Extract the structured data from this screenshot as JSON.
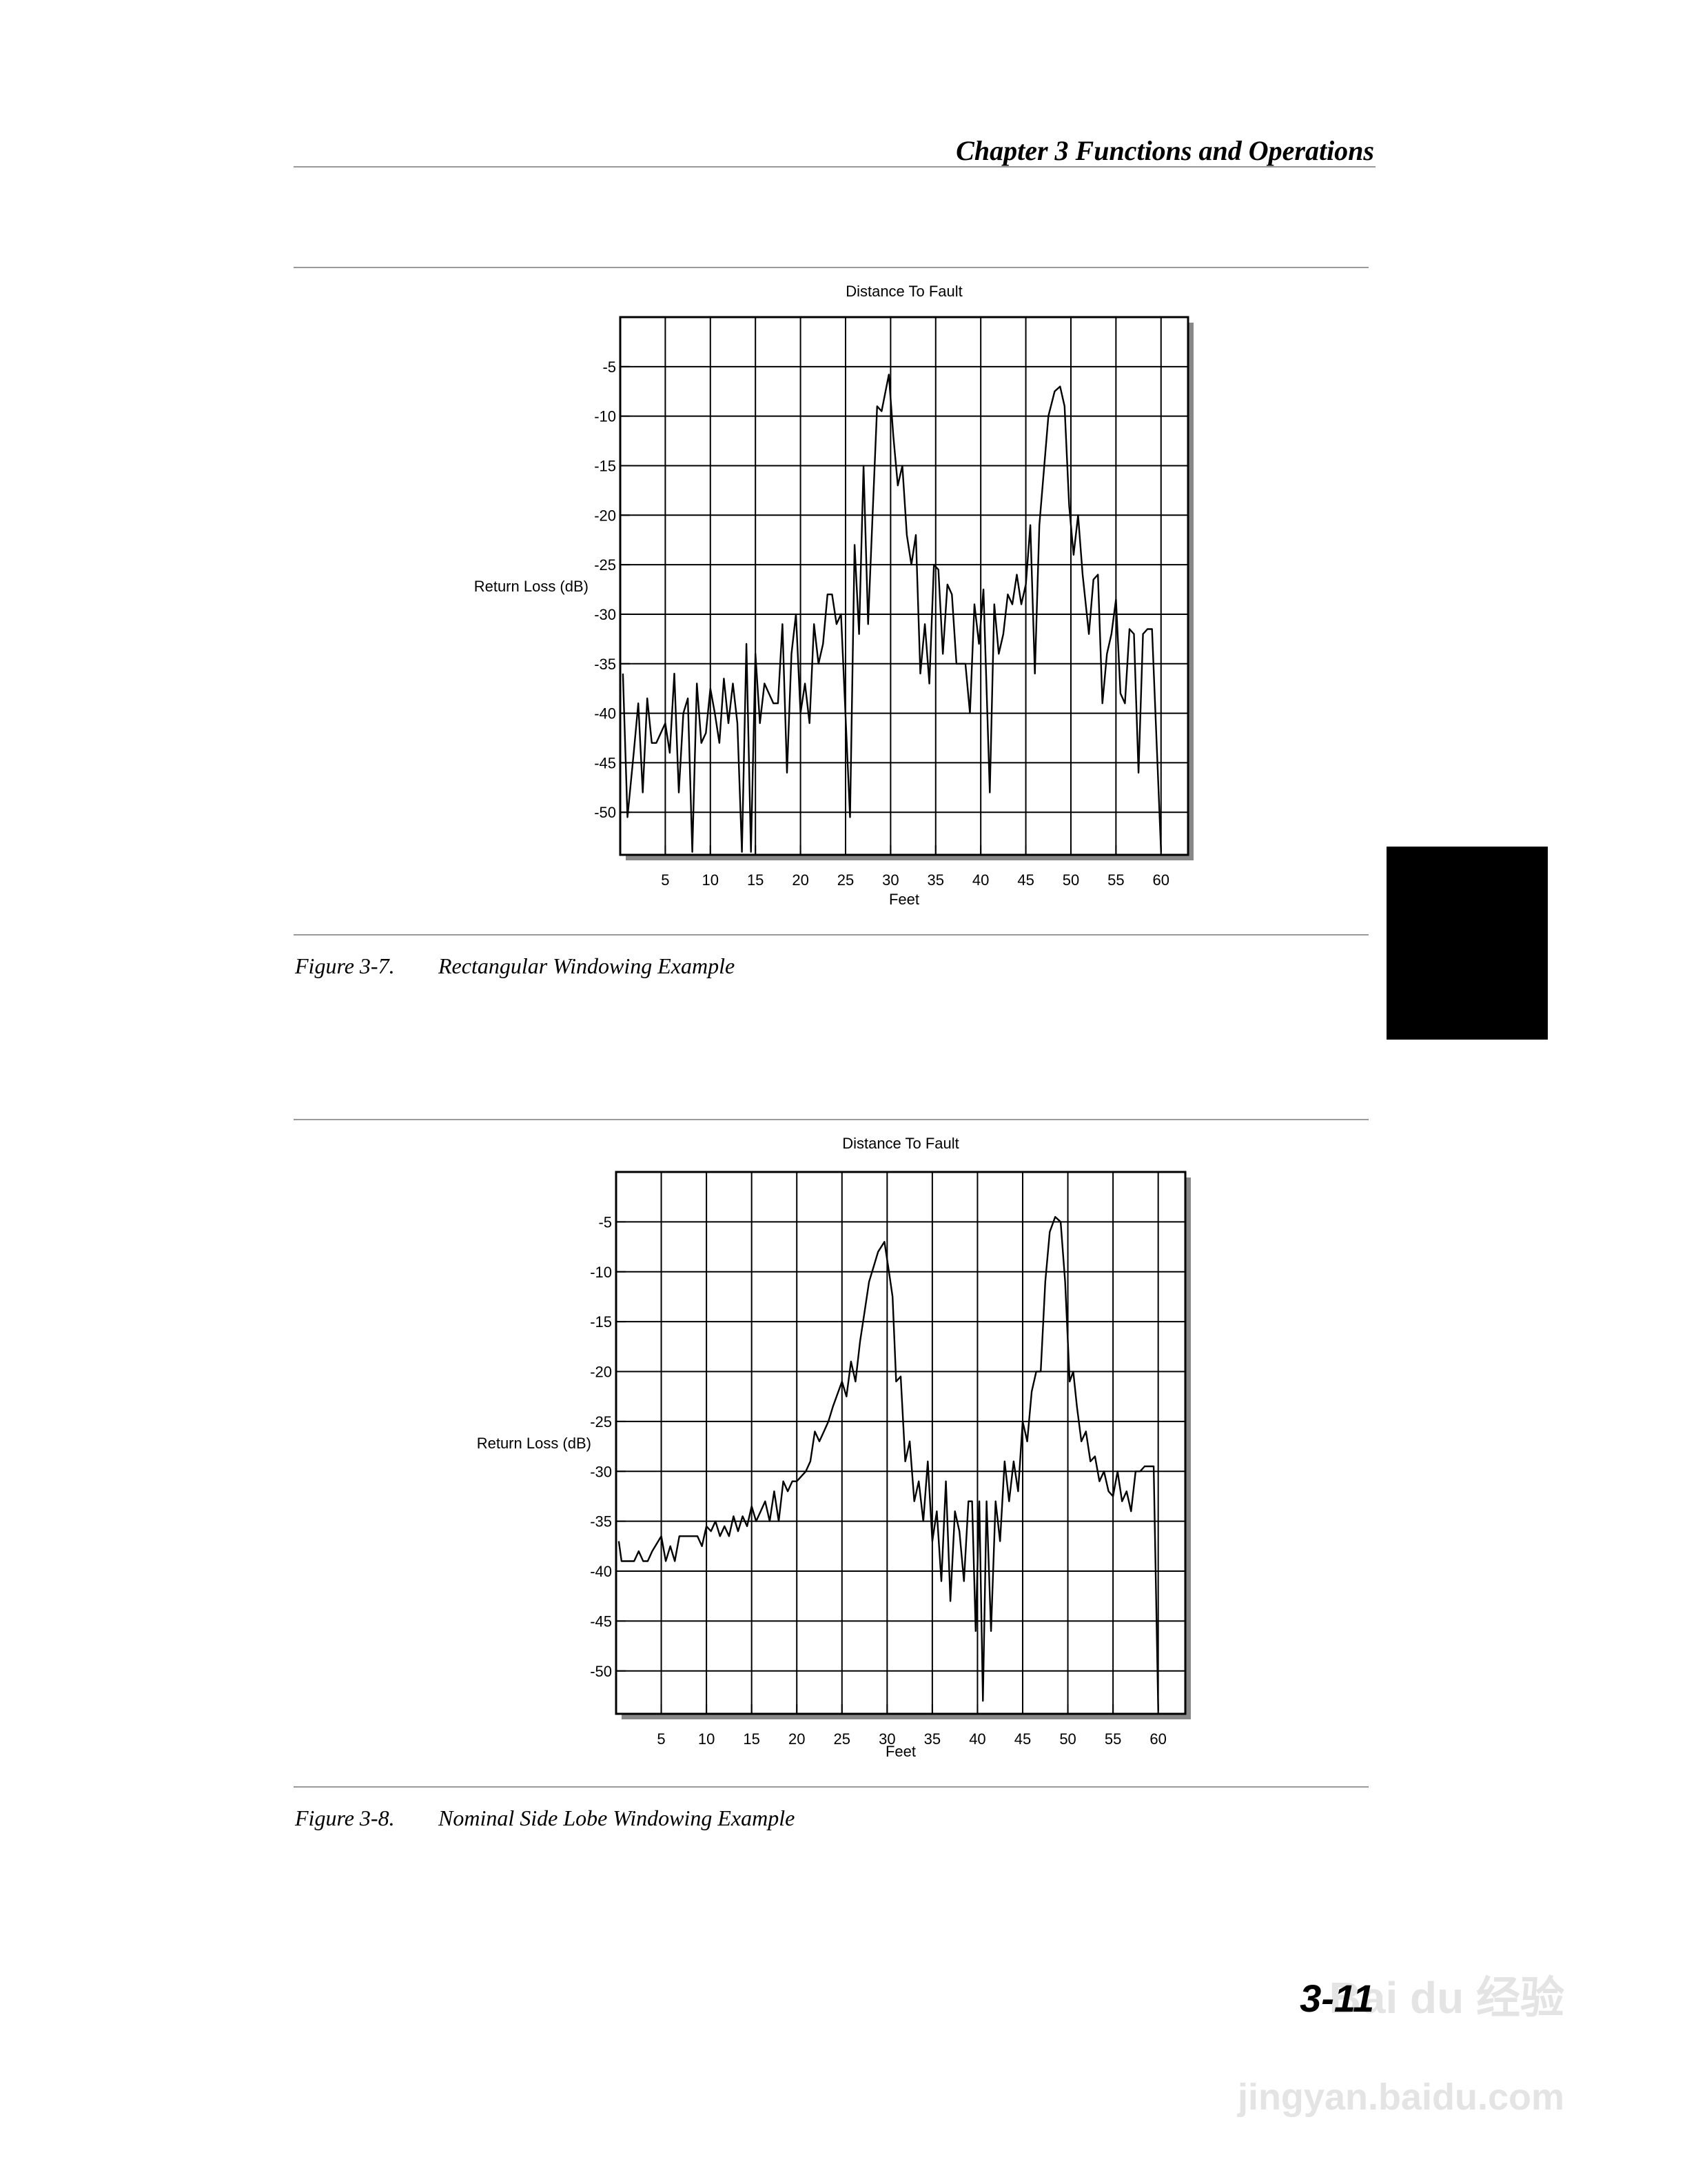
{
  "header": {
    "title": "Chapter 3 Functions and Operations"
  },
  "chart_data": [
    {
      "type": "line",
      "title": "Distance To Fault",
      "x_label": "Feet",
      "y_label": "Return Loss (dB)",
      "xlim": [
        0,
        63
      ],
      "ylim": [
        -54.3,
        0
      ],
      "xticks": [
        5,
        10,
        15,
        20,
        25,
        30,
        35,
        40,
        45,
        50,
        55,
        60
      ],
      "yticks": [
        -5,
        -10,
        -15,
        -20,
        -25,
        -30,
        -35,
        -40,
        -45,
        -50
      ],
      "grid": true,
      "color": "#000000",
      "x": [
        0.3,
        0.8,
        1.5,
        2,
        2.5,
        3,
        3.5,
        4,
        5,
        5.5,
        6,
        6.5,
        7,
        7.5,
        8,
        8.5,
        9,
        9.5,
        10,
        10.5,
        11,
        11.5,
        12,
        12.5,
        13,
        13.5,
        14,
        14.5,
        15,
        15.5,
        16,
        17,
        17.5,
        18,
        18.5,
        19,
        19.5,
        20,
        20.5,
        21,
        21.5,
        22,
        22.5,
        23,
        23.5,
        24,
        24.5,
        25.5,
        26,
        26.5,
        27,
        27.5,
        28,
        28.5,
        29,
        29.8,
        30.3,
        30.8,
        31.3,
        31.8,
        32.3,
        32.8,
        33.3,
        33.8,
        34.3,
        34.8,
        35.3,
        35.8,
        36.3,
        36.8,
        37.3,
        37.8,
        38.3,
        38.8,
        39.3,
        39.8,
        40.3,
        41,
        41.5,
        42,
        42.5,
        43,
        43.5,
        44,
        44.5,
        45,
        45.5,
        46,
        46.5,
        47.5,
        48.2,
        48.8,
        49.3,
        49.8,
        50.3,
        50.8,
        51.3,
        52,
        52.5,
        53,
        53.5,
        54,
        54.5,
        55,
        55.5,
        56,
        56.5,
        57,
        57.5,
        58,
        58.5,
        59,
        60
      ],
      "values": [
        -36,
        -50.5,
        -44,
        -39,
        -48,
        -38.5,
        -43,
        -43,
        -41,
        -44,
        -36,
        -48,
        -40,
        -38.5,
        -54,
        -37,
        -43,
        -42,
        -37.5,
        -40,
        -43,
        -36.5,
        -41,
        -37,
        -41,
        -54,
        -33,
        -54,
        -34,
        -41,
        -37,
        -39,
        -39,
        -31,
        -46,
        -34,
        -30,
        -40,
        -37,
        -41,
        -31,
        -35,
        -33,
        -28,
        -28,
        -31,
        -30,
        -50.5,
        -23,
        -32,
        -15,
        -31,
        -20,
        -9,
        -9.5,
        -5.8,
        -12,
        -17,
        -15,
        -22,
        -25,
        -22,
        -36,
        -31,
        -37,
        -25,
        -25.5,
        -34,
        -27,
        -28,
        -35,
        -35,
        -35,
        -40,
        -29,
        -33,
        -27.5,
        -48,
        -29,
        -34,
        -32,
        -28,
        -29,
        -26,
        -29,
        -27,
        -21,
        -36,
        -21,
        -10,
        -7.5,
        -7,
        -9,
        -19,
        -24,
        -20,
        -26,
        -32,
        -26.5,
        -26,
        -39,
        -34,
        -32,
        -28.5,
        -38,
        -39,
        -31.5,
        -32,
        -46,
        -32,
        -31.5,
        -31.5,
        -54
      ]
    },
    {
      "type": "line",
      "title": "Distance To Fault",
      "x_label": "Feet",
      "y_label": "Return Loss (dB)",
      "xlim": [
        0,
        63
      ],
      "ylim": [
        -54.3,
        0
      ],
      "xticks": [
        5,
        10,
        15,
        20,
        25,
        30,
        35,
        40,
        45,
        50,
        55,
        60
      ],
      "yticks": [
        -5,
        -10,
        -15,
        -20,
        -25,
        -30,
        -35,
        -40,
        -45,
        -50
      ],
      "grid": true,
      "color": "#000000",
      "x": [
        0.3,
        0.6,
        2,
        2.5,
        3,
        3.5,
        4,
        5,
        5.5,
        6,
        6.5,
        7,
        8,
        9,
        9.5,
        10,
        10.5,
        11,
        11.5,
        12,
        12.5,
        13,
        13.5,
        14,
        14.5,
        15,
        15.5,
        16,
        16.5,
        17,
        17.5,
        18,
        18.5,
        19,
        19.5,
        20,
        21,
        21.5,
        22,
        22.5,
        23,
        23.5,
        24,
        25,
        25.5,
        26,
        26.5,
        27,
        27.5,
        28,
        28.5,
        29,
        29.7,
        30.2,
        30.6,
        31,
        31.5,
        32,
        32.5,
        33,
        33.5,
        34,
        34.5,
        35,
        35.5,
        36,
        36.5,
        37,
        37.5,
        38,
        38.5,
        39,
        39.4,
        39.8,
        40.2,
        40.6,
        41,
        41.5,
        42,
        42.5,
        43,
        43.5,
        44,
        44.5,
        45,
        45.5,
        46,
        46.5,
        47,
        47.5,
        48,
        48.6,
        49.2,
        49.7,
        50.2,
        50.6,
        51,
        51.5,
        52,
        52.5,
        53,
        53.5,
        54,
        54.5,
        55,
        55.5,
        56,
        56.5,
        57,
        57.5,
        58,
        58.5,
        59,
        59.5,
        60
      ],
      "values": [
        -37,
        -39,
        -39,
        -38,
        -39,
        -39,
        -38,
        -36.5,
        -39,
        -37.5,
        -39,
        -36.5,
        -36.5,
        -36.5,
        -37.5,
        -35.5,
        -36,
        -35,
        -36.5,
        -35.5,
        -36.5,
        -34.5,
        -36,
        -34.5,
        -35.5,
        -33.5,
        -35,
        -34,
        -33,
        -35,
        -32,
        -35,
        -31,
        -32,
        -31,
        -31,
        -30,
        -29,
        -26,
        -27,
        -26,
        -25,
        -23.5,
        -21,
        -22.5,
        -19,
        -21,
        -17,
        -14,
        -11,
        -9.5,
        -8,
        -7,
        -10,
        -12.5,
        -21,
        -20.5,
        -29,
        -27,
        -33,
        -31,
        -35,
        -29,
        -37,
        -34,
        -41,
        -31,
        -43,
        -34,
        -36,
        -41,
        -33,
        -33,
        -46,
        -33,
        -53,
        -33,
        -46,
        -33,
        -37,
        -29,
        -33,
        -29,
        -32,
        -25,
        -27,
        -22,
        -20,
        -20,
        -11,
        -6,
        -4.5,
        -5,
        -11,
        -21,
        -20,
        -23.5,
        -27,
        -26,
        -29,
        -28.5,
        -31,
        -30,
        -32,
        -32.5,
        -30,
        -33,
        -32,
        -34,
        -30,
        -30,
        -29.5,
        -29.5,
        -29.5,
        -54
      ]
    }
  ],
  "captions": [
    {
      "number": "Figure 3-7.",
      "text": "Rectangular Windowing Example"
    },
    {
      "number": "Figure 3-8.",
      "text": "Nominal Side Lobe Windowing Example"
    }
  ],
  "page_number": "3-11",
  "watermark": {
    "brand": "Bai du 经验",
    "url": "jingyan.baidu.com"
  }
}
